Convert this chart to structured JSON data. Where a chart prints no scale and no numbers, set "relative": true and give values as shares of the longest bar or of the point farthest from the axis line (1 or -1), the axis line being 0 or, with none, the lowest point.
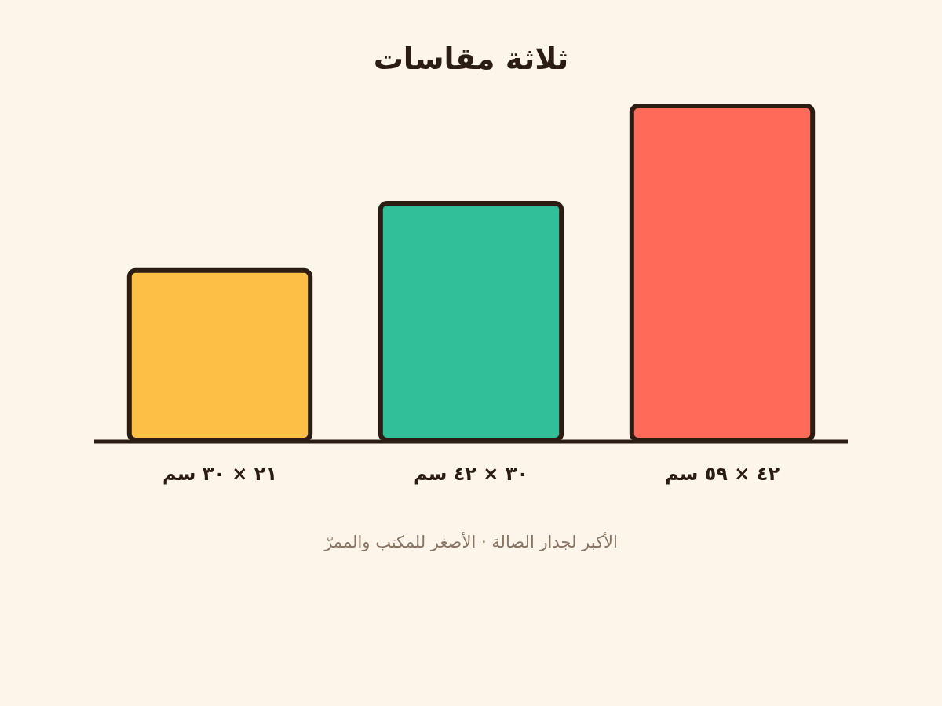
{
  "chart_data": {
    "type": "bar",
    "title": "ثلاثة مقاسات",
    "categories": [
      "٢١ × ٣٠ سم",
      "٣٠ × ٤٢ سم",
      "٤٢ × ٥٩ سم"
    ],
    "values": [
      0.51,
      0.71,
      1
    ],
    "colors": [
      "#fdbf45",
      "#31bf9a",
      "#ff6a59"
    ],
    "relative": true,
    "annotations": [
      "الأكبر لجدار الصالة · الأصغر للمكتب والممرّ"
    ]
  }
}
